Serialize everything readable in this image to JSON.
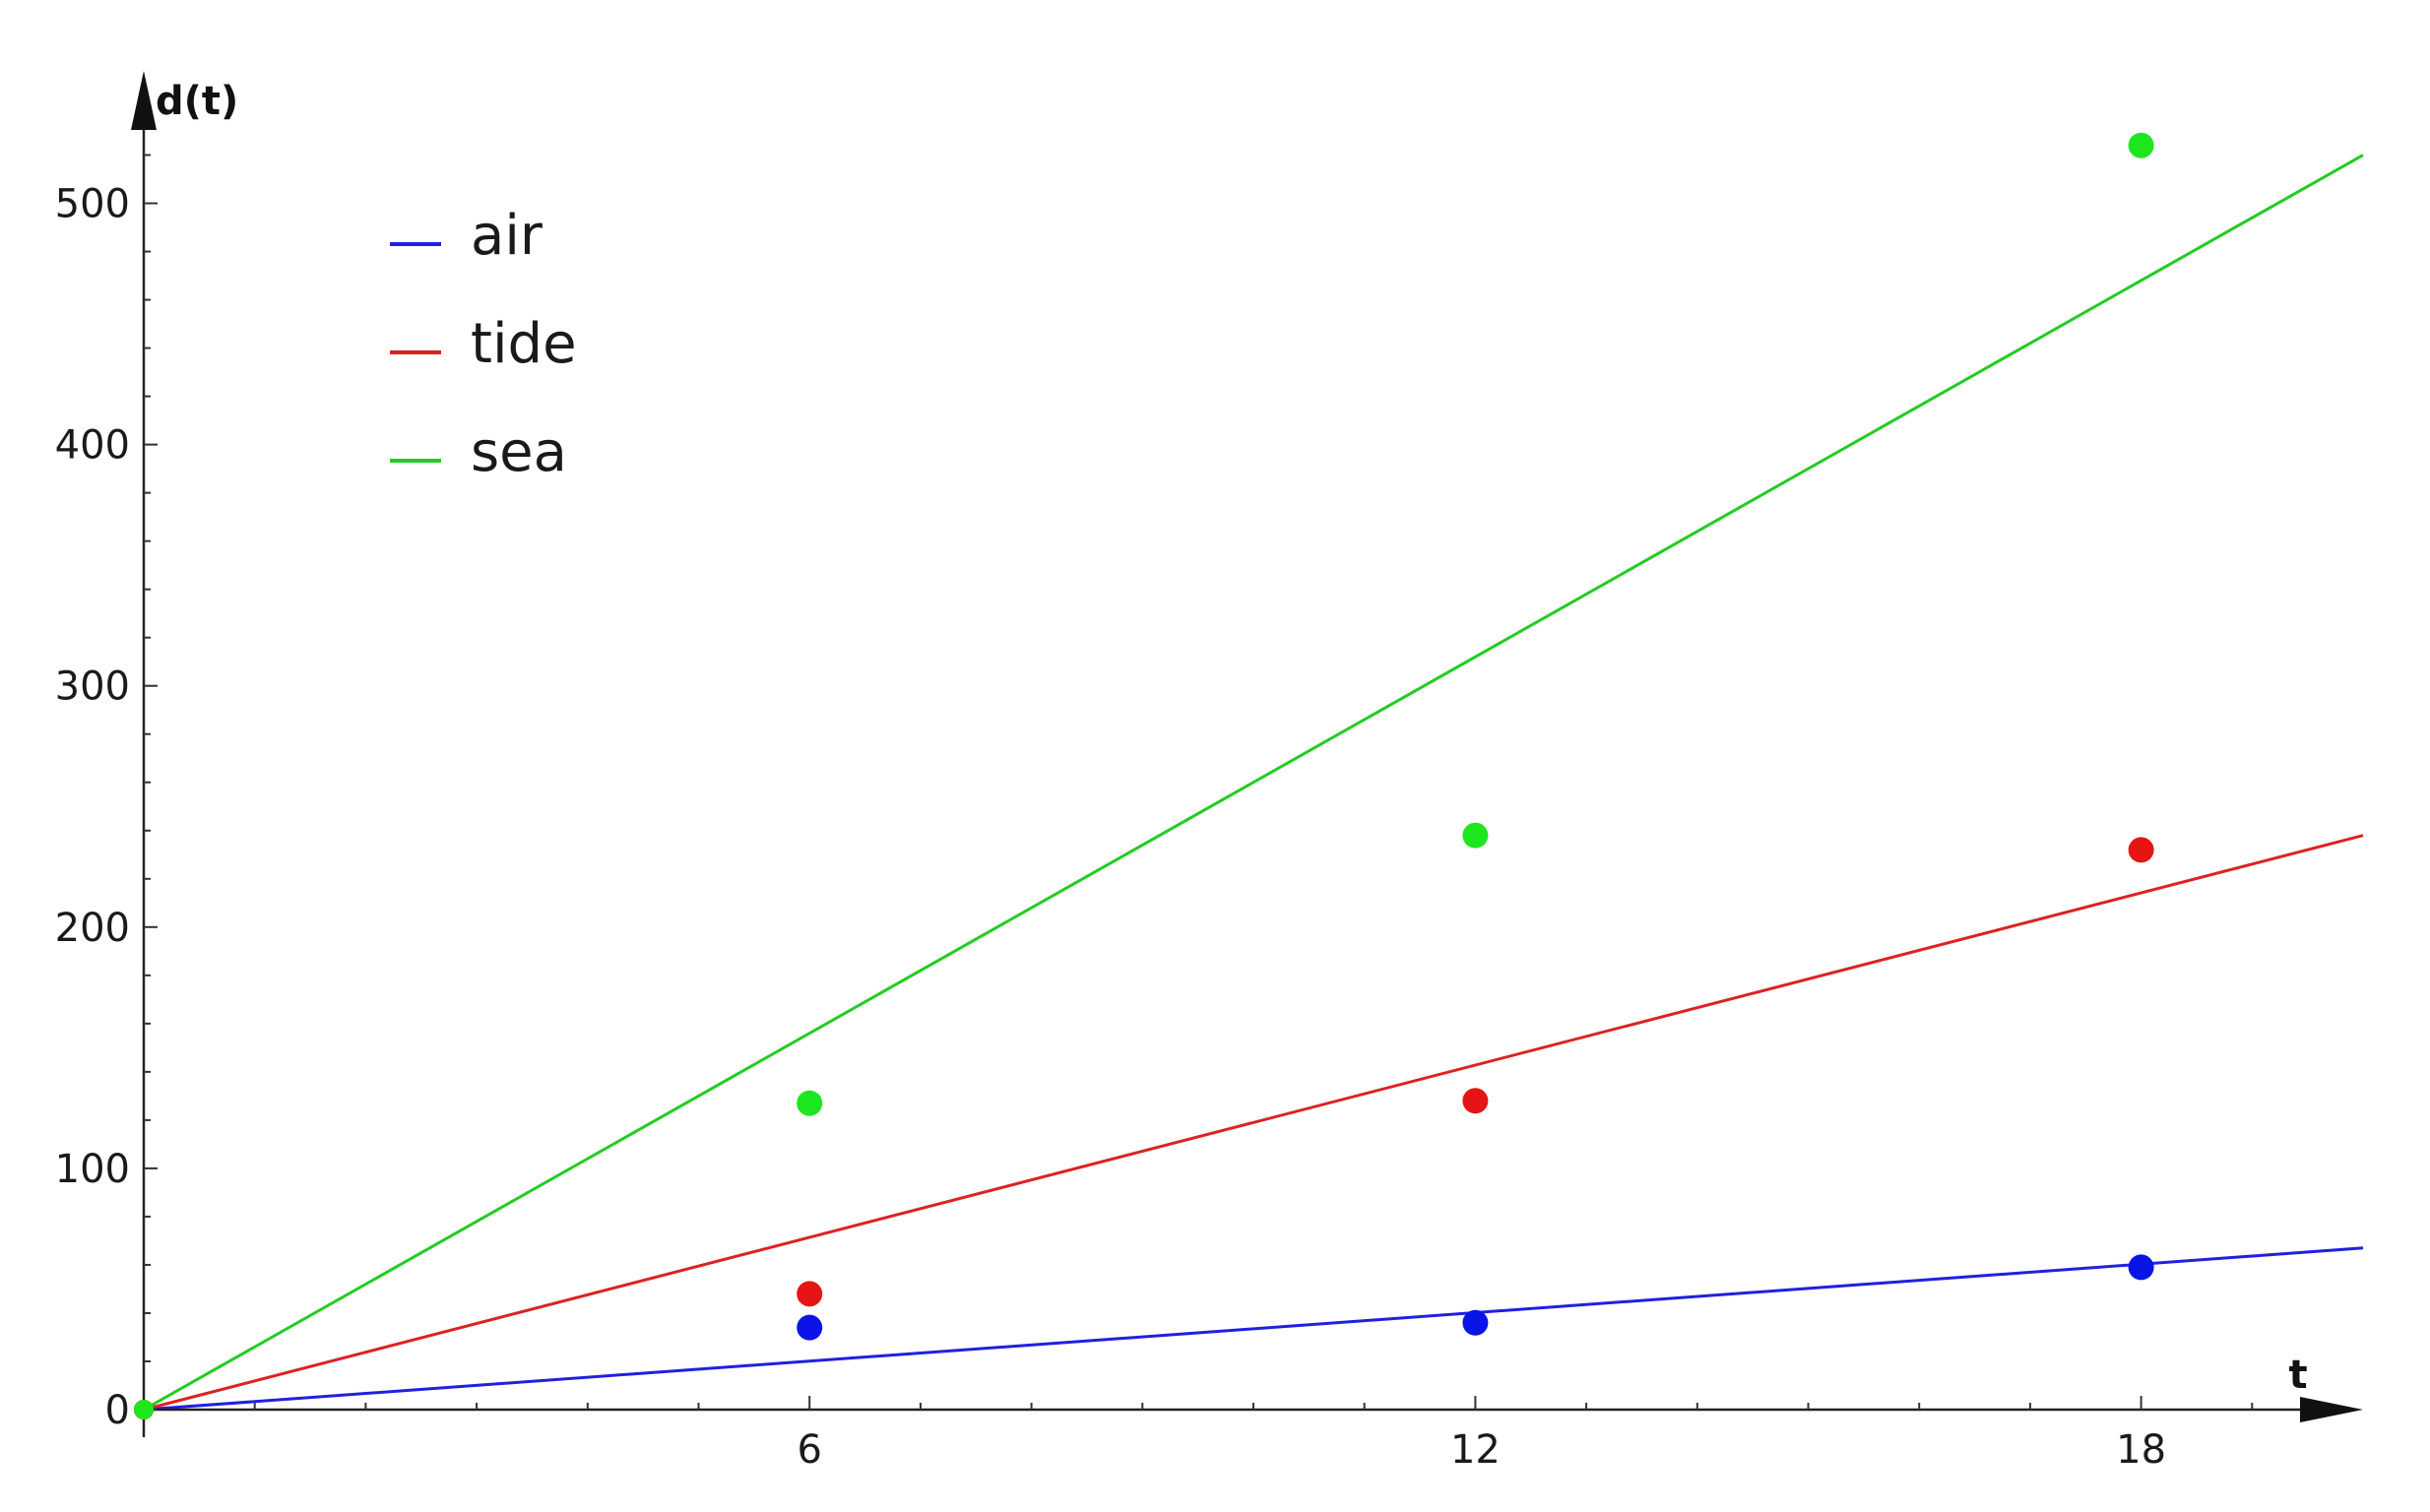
{
  "chart_data": {
    "type": "scatter",
    "xlabel": "t",
    "ylabel": "d(t)",
    "xlim": [
      0,
      20
    ],
    "ylim": [
      0,
      540
    ],
    "x_ticks": [
      6,
      12,
      18
    ],
    "y_ticks": [
      0,
      100,
      200,
      300,
      400,
      500
    ],
    "grid": false,
    "legend_position": "top-left",
    "series": [
      {
        "name": "air",
        "color": "#2020e0",
        "point_color": "#0a14e6",
        "points": [
          {
            "x": 0,
            "y": 0
          },
          {
            "x": 6,
            "y": 34
          },
          {
            "x": 12,
            "y": 36
          },
          {
            "x": 18,
            "y": 59
          }
        ],
        "fit_line": {
          "type": "linear",
          "slope": 3.35,
          "intercept": 0
        }
      },
      {
        "name": "tide",
        "color": "#dd2222",
        "point_color": "#e61414",
        "points": [
          {
            "x": 0,
            "y": 0
          },
          {
            "x": 6,
            "y": 48
          },
          {
            "x": 12,
            "y": 128
          },
          {
            "x": 18,
            "y": 232
          }
        ],
        "fit_line": {
          "type": "linear",
          "slope": 11.9,
          "intercept": 0
        }
      },
      {
        "name": "sea",
        "color": "#22cc22",
        "point_color": "#1ee61e",
        "points": [
          {
            "x": 0,
            "y": 0
          },
          {
            "x": 6,
            "y": 127
          },
          {
            "x": 12,
            "y": 238
          },
          {
            "x": 18,
            "y": 524
          }
        ],
        "fit_line": {
          "type": "linear",
          "slope": 26.0,
          "intercept": 0
        }
      }
    ]
  }
}
